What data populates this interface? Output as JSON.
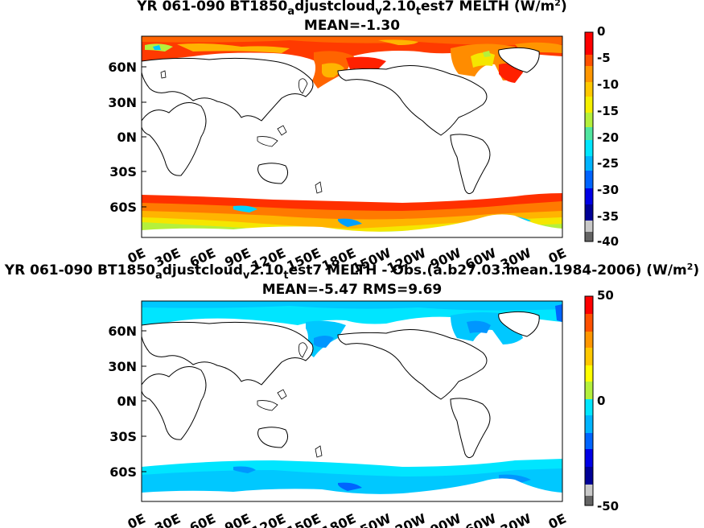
{
  "panels": [
    {
      "title_parts": [
        "YR 061-090 BT1850",
        "a",
        "djustcloud",
        "v",
        "2.10",
        "t",
        "est7  MELTH (W/m",
        "2",
        ")"
      ],
      "mean_text": "MEAN=-1.30",
      "colorbar_ticks": [
        "0",
        "-5",
        "-10",
        "-15",
        "-20",
        "-25",
        "-30",
        "-35",
        "-40"
      ]
    },
    {
      "title_parts": [
        "YR 061-090 BT1850",
        "a",
        "djustcloud",
        "v",
        "2.10",
        "t",
        "est7 MELTH - Obs.(a.b27.03.mean.1984-2006) (W/m",
        "2",
        ")"
      ],
      "mean_text": "MEAN=-5.47 RMS=9.69",
      "colorbar_ticks": [
        "50",
        "0",
        "-50"
      ]
    }
  ],
  "lat_labels": [
    "60N",
    "30N",
    "0N",
    "30S",
    "60S"
  ],
  "lon_labels": [
    "0E",
    "30E",
    "60E",
    "90E",
    "120E",
    "150E",
    "180E",
    "150W",
    "120W",
    "90W",
    "60W",
    "30W",
    "0E"
  ],
  "colors": {
    "panel1_scale": [
      "#ff0000",
      "#ff7a00",
      "#ffb400",
      "#f5e600",
      "#b4f03c",
      "#00e6ff",
      "#0096ff",
      "#0000c8",
      "#808080"
    ],
    "panel2_scale": [
      "#ff0000",
      "#ff9600",
      "#ffff00",
      "#00e6ff",
      "#0064ff",
      "#0000a0",
      "#808080"
    ],
    "ocean_ice_band": "#00e5ff"
  }
}
